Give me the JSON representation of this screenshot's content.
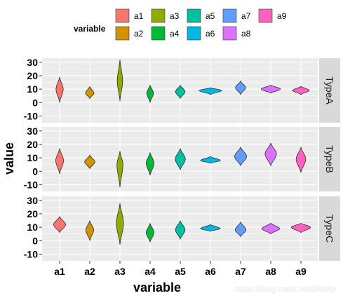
{
  "chart_data": {
    "type": "violin",
    "xlabel": "variable",
    "ylabel": "value",
    "categories": [
      "a1",
      "a2",
      "a3",
      "a4",
      "a5",
      "a6",
      "a7",
      "a8",
      "a9"
    ],
    "yticks": [
      -10,
      0,
      10,
      20,
      30
    ],
    "ylim": [
      -15,
      33
    ],
    "legend": {
      "title": "variable",
      "placement": "top",
      "entries": [
        {
          "label": "a1",
          "color": "#F8766D"
        },
        {
          "label": "a2",
          "color": "#D39200"
        },
        {
          "label": "a3",
          "color": "#93AA00"
        },
        {
          "label": "a4",
          "color": "#00BA38"
        },
        {
          "label": "a5",
          "color": "#00C19F"
        },
        {
          "label": "a6",
          "color": "#00B9E3"
        },
        {
          "label": "a7",
          "color": "#619CFF"
        },
        {
          "label": "a8",
          "color": "#DB72FB"
        },
        {
          "label": "a9",
          "color": "#FF61C3"
        }
      ]
    },
    "facets": [
      {
        "name": "TypeA",
        "violins": [
          {
            "category": "a1",
            "min": 0,
            "max": 19,
            "center": 10,
            "halfwidth": 0.12
          },
          {
            "category": "a2",
            "min": 3,
            "max": 12,
            "center": 7,
            "halfwidth": 0.14
          },
          {
            "category": "a3",
            "min": 1,
            "max": 32,
            "center": 16,
            "halfwidth": 0.09
          },
          {
            "category": "a4",
            "min": 0,
            "max": 13,
            "center": 7,
            "halfwidth": 0.11
          },
          {
            "category": "a5",
            "min": 3,
            "max": 13,
            "center": 8,
            "halfwidth": 0.16
          },
          {
            "category": "a6",
            "min": 6,
            "max": 11,
            "center": 9,
            "halfwidth": 0.38
          },
          {
            "category": "a7",
            "min": 6,
            "max": 16,
            "center": 11,
            "halfwidth": 0.17
          },
          {
            "category": "a8",
            "min": 7,
            "max": 13,
            "center": 10,
            "halfwidth": 0.32
          },
          {
            "category": "a9",
            "min": 6,
            "max": 12,
            "center": 9,
            "halfwidth": 0.28
          }
        ]
      },
      {
        "name": "TypeB",
        "violins": [
          {
            "category": "a1",
            "min": -2,
            "max": 17,
            "center": 8,
            "halfwidth": 0.13
          },
          {
            "category": "a2",
            "min": 2,
            "max": 12,
            "center": 7,
            "halfwidth": 0.17
          },
          {
            "category": "a3",
            "min": -12,
            "max": 15,
            "center": 5,
            "halfwidth": 0.1
          },
          {
            "category": "a4",
            "min": -3,
            "max": 14,
            "center": 6,
            "halfwidth": 0.13
          },
          {
            "category": "a5",
            "min": 1,
            "max": 17,
            "center": 9,
            "halfwidth": 0.17
          },
          {
            "category": "a6",
            "min": 6,
            "max": 11,
            "center": 8,
            "halfwidth": 0.33
          },
          {
            "category": "a7",
            "min": 4,
            "max": 18,
            "center": 11,
            "halfwidth": 0.2
          },
          {
            "category": "a8",
            "min": 4,
            "max": 21,
            "center": 13,
            "halfwidth": 0.19
          },
          {
            "category": "a9",
            "min": -1,
            "max": 18,
            "center": 9,
            "halfwidth": 0.16
          }
        ]
      },
      {
        "name": "TypeC",
        "violins": [
          {
            "category": "a1",
            "min": 6,
            "max": 18,
            "center": 12,
            "halfwidth": 0.2
          },
          {
            "category": "a2",
            "min": 0,
            "max": 15,
            "center": 8,
            "halfwidth": 0.13
          },
          {
            "category": "a3",
            "min": -3,
            "max": 28,
            "center": 13,
            "halfwidth": 0.12
          },
          {
            "category": "a4",
            "min": -1,
            "max": 13,
            "center": 6,
            "halfwidth": 0.13
          },
          {
            "category": "a5",
            "min": 1,
            "max": 15,
            "center": 8,
            "halfwidth": 0.16
          },
          {
            "category": "a6",
            "min": 7,
            "max": 12,
            "center": 9,
            "halfwidth": 0.33
          },
          {
            "category": "a7",
            "min": 3,
            "max": 14,
            "center": 8,
            "halfwidth": 0.18
          },
          {
            "category": "a8",
            "min": 5,
            "max": 13,
            "center": 9,
            "halfwidth": 0.3
          },
          {
            "category": "a9",
            "min": 6,
            "max": 13,
            "center": 10,
            "halfwidth": 0.32
          }
        ]
      }
    ],
    "grid": true,
    "panel_background": "#EBEBEB",
    "strip_background": "#D9D9D9",
    "gridline_color": "#FFFFFF"
  },
  "watermark": "https://blog.csdn.net/biocity"
}
